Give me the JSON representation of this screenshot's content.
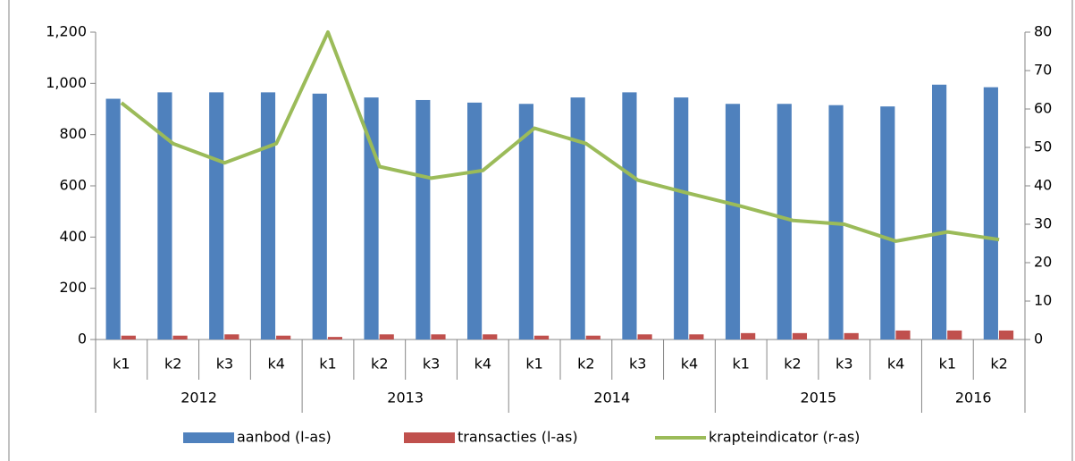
{
  "chart_data": {
    "type": "bar",
    "categories": [
      "k1",
      "k2",
      "k3",
      "k4",
      "k1",
      "k2",
      "k3",
      "k4",
      "k1",
      "k2",
      "k3",
      "k4",
      "k1",
      "k2",
      "k3",
      "k4",
      "k1",
      "k2"
    ],
    "groups": [
      {
        "name": "2012",
        "count": 4
      },
      {
        "name": "2013",
        "count": 4
      },
      {
        "name": "2014",
        "count": 4
      },
      {
        "name": "2015",
        "count": 4
      },
      {
        "name": "2016",
        "count": 2
      }
    ],
    "series": [
      {
        "name": "aanbod (l-as)",
        "color": "#4f81bd",
        "type": "bar",
        "values": [
          940,
          965,
          965,
          965,
          960,
          945,
          935,
          925,
          920,
          945,
          965,
          945,
          920,
          920,
          915,
          910,
          995,
          985
        ]
      },
      {
        "name": "transacties (l-as)",
        "color": "#c0504d",
        "type": "bar",
        "values": [
          15,
          15,
          20,
          15,
          10,
          20,
          20,
          20,
          15,
          15,
          20,
          20,
          25,
          25,
          25,
          35,
          35,
          35
        ]
      },
      {
        "name": "krapteindicator (r-as)",
        "color": "#9bbb59",
        "type": "line",
        "axis": "y2",
        "values": [
          61.6,
          51,
          46,
          51,
          80,
          45,
          42,
          44,
          55,
          51,
          41.5,
          38,
          34.7,
          31,
          30,
          25.6,
          28,
          26
        ]
      }
    ],
    "ylim": [
      0,
      1200
    ],
    "yticks": [
      0,
      200,
      400,
      600,
      800,
      {
        "value": 1000,
        "label": "1,000"
      },
      {
        "value": 1200,
        "label": "1,200"
      }
    ],
    "y2lim": [
      0,
      80
    ],
    "y2ticks": [
      0,
      10,
      20,
      30,
      40,
      50,
      60,
      70,
      80
    ],
    "legend": "bottom"
  }
}
